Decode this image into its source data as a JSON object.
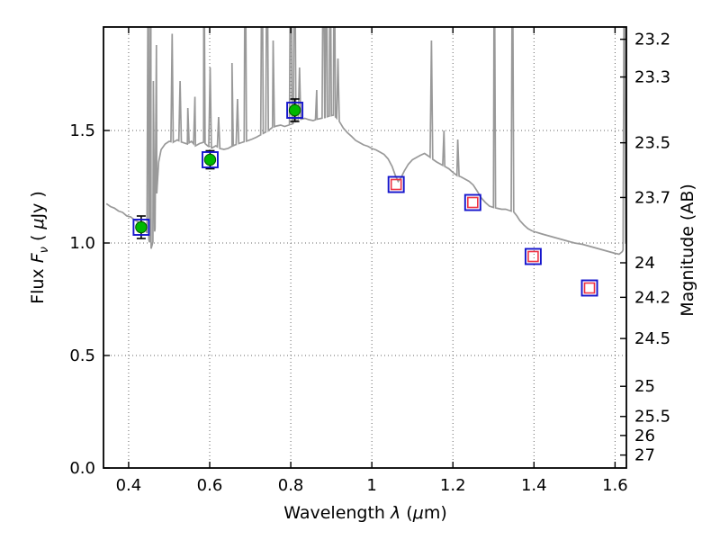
{
  "chart_data": {
    "type": "line",
    "title": "",
    "axes": {
      "xlabel": {
        "prefix": "Wavelength  ",
        "lambda": "λ",
        "open": " (",
        "mu": "μ",
        "close": "m)"
      },
      "ylabel_left": {
        "prefix": "Flux  ",
        "F": "F",
        "nu": "ν",
        "mid": "  ( ",
        "mu": "μ",
        "suffix": "Jy )"
      },
      "ylabel_right": "Magnitude (AB)",
      "xlim": [
        0.338,
        1.628
      ],
      "ylim": [
        0.0,
        1.96
      ],
      "grid": "dotted",
      "x_ticks": [
        {
          "v": 0.4,
          "label": "0.4"
        },
        {
          "v": 0.6,
          "label": "0.6"
        },
        {
          "v": 0.8,
          "label": "0.8"
        },
        {
          "v": 1.0,
          "label": "1"
        },
        {
          "v": 1.2,
          "label": "1.2"
        },
        {
          "v": 1.4,
          "label": "1.4"
        },
        {
          "v": 1.6,
          "label": "1.6"
        }
      ],
      "y_ticks_left": [
        {
          "v": 0.0,
          "label": "0.0"
        },
        {
          "v": 0.5,
          "label": "0.5"
        },
        {
          "v": 1.0,
          "label": "1.0"
        },
        {
          "v": 1.5,
          "label": "1.5"
        }
      ],
      "y_ticks_right": [
        {
          "mag": 23.2,
          "label": "23.2"
        },
        {
          "mag": 23.3,
          "label": "23.3"
        },
        {
          "mag": 23.5,
          "label": "23.5"
        },
        {
          "mag": 23.7,
          "label": "23.7"
        },
        {
          "mag": 24.0,
          "label": "24"
        },
        {
          "mag": 24.2,
          "label": "24.2"
        },
        {
          "mag": 24.5,
          "label": "24.5"
        },
        {
          "mag": 25.0,
          "label": "25"
        },
        {
          "mag": 25.5,
          "label": "25.5"
        },
        {
          "mag": 26.0,
          "label": "26"
        },
        {
          "mag": 27.0,
          "label": "27"
        }
      ]
    },
    "colors": {
      "spectrum": "#999999",
      "blue_square": "#1414cc",
      "red_square": "#ee3344",
      "green_circle": "#00b800",
      "green_circle_edge": "#005500",
      "error_bar": "#000000",
      "grid": "#666666",
      "axis": "#000000",
      "background": "#ffffff"
    },
    "photometry": {
      "green_circles": [
        {
          "x": 0.431,
          "flux": 1.07,
          "err": 0.05
        },
        {
          "x": 0.601,
          "flux": 1.37,
          "err": 0.04
        },
        {
          "x": 0.81,
          "flux": 1.59,
          "err": 0.05
        }
      ],
      "blue_squares": [
        [
          0.431,
          1.07
        ],
        [
          0.601,
          1.37
        ],
        [
          0.81,
          1.59
        ],
        [
          1.06,
          1.26
        ],
        [
          1.249,
          1.18
        ],
        [
          1.398,
          0.94
        ],
        [
          1.537,
          0.8
        ]
      ],
      "red_squares": [
        [
          1.06,
          1.26
        ],
        [
          1.249,
          1.18
        ],
        [
          1.398,
          0.94
        ],
        [
          1.537,
          0.8
        ]
      ]
    },
    "spectrum": {
      "continuum": [
        [
          0.345,
          1.175
        ],
        [
          0.355,
          1.162
        ],
        [
          0.365,
          1.155
        ],
        [
          0.375,
          1.142
        ],
        [
          0.385,
          1.136
        ],
        [
          0.395,
          1.121
        ],
        [
          0.405,
          1.116
        ],
        [
          0.415,
          1.102
        ],
        [
          0.425,
          1.092
        ],
        [
          0.435,
          1.076
        ],
        [
          0.443,
          1.058
        ],
        [
          0.45,
          1.015
        ],
        [
          0.4555,
          0.975
        ],
        [
          0.46,
          1.005
        ],
        [
          0.465,
          1.06
        ],
        [
          0.4695,
          1.22
        ],
        [
          0.474,
          1.36
        ],
        [
          0.48,
          1.415
        ],
        [
          0.49,
          1.44
        ],
        [
          0.5,
          1.452
        ],
        [
          0.51,
          1.448
        ],
        [
          0.52,
          1.458
        ],
        [
          0.53,
          1.449
        ],
        [
          0.545,
          1.44
        ],
        [
          0.555,
          1.452
        ],
        [
          0.565,
          1.432
        ],
        [
          0.575,
          1.442
        ],
        [
          0.585,
          1.448
        ],
        [
          0.595,
          1.432
        ],
        [
          0.605,
          1.422
        ],
        [
          0.615,
          1.432
        ],
        [
          0.625,
          1.42
        ],
        [
          0.635,
          1.416
        ],
        [
          0.645,
          1.42
        ],
        [
          0.655,
          1.43
        ],
        [
          0.665,
          1.438
        ],
        [
          0.675,
          1.444
        ],
        [
          0.685,
          1.45
        ],
        [
          0.695,
          1.455
        ],
        [
          0.705,
          1.462
        ],
        [
          0.715,
          1.47
        ],
        [
          0.725,
          1.48
        ],
        [
          0.735,
          1.49
        ],
        [
          0.745,
          1.5
        ],
        [
          0.755,
          1.514
        ],
        [
          0.765,
          1.52
        ],
        [
          0.775,
          1.524
        ],
        [
          0.785,
          1.518
        ],
        [
          0.795,
          1.524
        ],
        [
          0.805,
          1.53
        ],
        [
          0.815,
          1.544
        ],
        [
          0.825,
          1.55
        ],
        [
          0.835,
          1.554
        ],
        [
          0.845,
          1.548
        ],
        [
          0.855,
          1.544
        ],
        [
          0.865,
          1.55
        ],
        [
          0.875,
          1.554
        ],
        [
          0.885,
          1.558
        ],
        [
          0.895,
          1.564
        ],
        [
          0.905,
          1.568
        ],
        [
          0.912,
          1.558
        ],
        [
          0.92,
          1.54
        ],
        [
          0.93,
          1.51
        ],
        [
          0.94,
          1.49
        ],
        [
          0.95,
          1.474
        ],
        [
          0.96,
          1.456
        ],
        [
          0.97,
          1.446
        ],
        [
          0.98,
          1.436
        ],
        [
          0.99,
          1.43
        ],
        [
          1.0,
          1.42
        ],
        [
          1.01,
          1.414
        ],
        [
          1.02,
          1.404
        ],
        [
          1.03,
          1.394
        ],
        [
          1.04,
          1.374
        ],
        [
          1.05,
          1.34
        ],
        [
          1.058,
          1.3
        ],
        [
          1.065,
          1.274
        ],
        [
          1.072,
          1.29
        ],
        [
          1.08,
          1.32
        ],
        [
          1.09,
          1.35
        ],
        [
          1.1,
          1.37
        ],
        [
          1.11,
          1.38
        ],
        [
          1.12,
          1.39
        ],
        [
          1.13,
          1.398
        ],
        [
          1.14,
          1.386
        ],
        [
          1.152,
          1.37
        ],
        [
          1.16,
          1.36
        ],
        [
          1.17,
          1.35
        ],
        [
          1.18,
          1.34
        ],
        [
          1.19,
          1.33
        ],
        [
          1.2,
          1.314
        ],
        [
          1.21,
          1.3
        ],
        [
          1.22,
          1.294
        ],
        [
          1.23,
          1.284
        ],
        [
          1.24,
          1.274
        ],
        [
          1.25,
          1.258
        ],
        [
          1.26,
          1.23
        ],
        [
          1.27,
          1.2
        ],
        [
          1.28,
          1.18
        ],
        [
          1.29,
          1.164
        ],
        [
          1.3,
          1.158
        ],
        [
          1.31,
          1.154
        ],
        [
          1.32,
          1.15
        ],
        [
          1.33,
          1.15
        ],
        [
          1.34,
          1.144
        ],
        [
          1.35,
          1.138
        ],
        [
          1.358,
          1.12
        ],
        [
          1.365,
          1.1
        ],
        [
          1.375,
          1.08
        ],
        [
          1.385,
          1.064
        ],
        [
          1.395,
          1.054
        ],
        [
          1.405,
          1.048
        ],
        [
          1.42,
          1.04
        ],
        [
          1.44,
          1.03
        ],
        [
          1.46,
          1.02
        ],
        [
          1.48,
          1.01
        ],
        [
          1.5,
          1.0
        ],
        [
          1.52,
          0.994
        ],
        [
          1.54,
          0.984
        ],
        [
          1.56,
          0.974
        ],
        [
          1.58,
          0.964
        ],
        [
          1.6,
          0.954
        ],
        [
          1.61,
          0.95
        ],
        [
          1.618,
          0.962
        ],
        [
          1.628,
          1.005
        ]
      ],
      "emission_lines": [
        [
          0.4485,
          2.5
        ],
        [
          0.4545,
          2.5
        ],
        [
          0.461,
          1.72
        ],
        [
          0.4685,
          1.88
        ],
        [
          0.5075,
          1.93
        ],
        [
          0.527,
          1.72
        ],
        [
          0.546,
          1.6
        ],
        [
          0.5635,
          1.65
        ],
        [
          0.5855,
          2.5
        ],
        [
          0.601,
          1.78
        ],
        [
          0.622,
          1.56
        ],
        [
          0.655,
          1.8
        ],
        [
          0.6685,
          1.64
        ],
        [
          0.6875,
          2.5
        ],
        [
          0.729,
          2.5
        ],
        [
          0.7415,
          2.5
        ],
        [
          0.7565,
          1.9
        ],
        [
          0.8,
          2.5
        ],
        [
          0.8095,
          2.5
        ],
        [
          0.8215,
          1.78
        ],
        [
          0.864,
          1.68
        ],
        [
          0.8805,
          2.5
        ],
        [
          0.8875,
          2.5
        ],
        [
          0.897,
          2.5
        ],
        [
          0.907,
          2.5
        ],
        [
          0.9165,
          1.82
        ],
        [
          1.147,
          1.9
        ],
        [
          1.178,
          1.5
        ],
        [
          1.212,
          1.46
        ],
        [
          1.302,
          2.5
        ],
        [
          1.347,
          2.5
        ],
        [
          1.623,
          2.5
        ]
      ]
    }
  }
}
